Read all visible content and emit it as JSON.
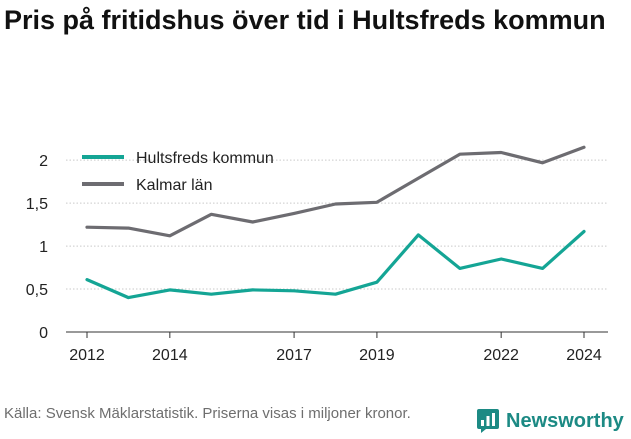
{
  "title": "Pris på fritidshus över tid i Hultsfreds kommun",
  "source": "Källa: Svensk Mäklarstatistik. Priserna visas i miljoner kronor.",
  "brand": {
    "name": "Newsworthy",
    "icon": "newsworthy-logo-icon",
    "color": "#1c8a84"
  },
  "chart_data": {
    "type": "line",
    "title": "Pris på fritidshus över tid i Hultsfreds kommun",
    "xlabel": "",
    "ylabel": "",
    "x": [
      2012,
      2013,
      2014,
      2015,
      2016,
      2017,
      2018,
      2019,
      2020,
      2021,
      2022,
      2023,
      2024
    ],
    "x_ticks": [
      2012,
      2014,
      2017,
      2019,
      2022,
      2024
    ],
    "y_ticks": [
      {
        "value": 0,
        "label": "0"
      },
      {
        "value": 0.5,
        "label": "0,5"
      },
      {
        "value": 1,
        "label": "1"
      },
      {
        "value": 1.5,
        "label": "1,5"
      },
      {
        "value": 2,
        "label": "2"
      }
    ],
    "xlim": [
      2012,
      2024
    ],
    "ylim": [
      0,
      2.2
    ],
    "grid": "horizontal",
    "legend_position": "top-left",
    "series": [
      {
        "name": "Hultsfreds kommun",
        "color": "#14a595",
        "values": [
          0.61,
          0.4,
          0.49,
          0.44,
          0.49,
          0.48,
          0.44,
          0.58,
          1.13,
          0.74,
          0.85,
          0.74,
          1.17
        ]
      },
      {
        "name": "Kalmar län",
        "color": "#6d6c71",
        "values": [
          1.22,
          1.21,
          1.12,
          1.37,
          1.28,
          1.38,
          1.49,
          1.51,
          1.79,
          2.07,
          2.09,
          1.97,
          2.15
        ]
      }
    ]
  }
}
